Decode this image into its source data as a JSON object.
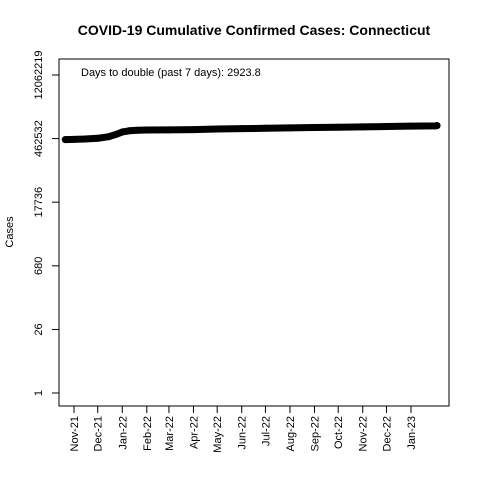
{
  "chart_data": {
    "type": "line",
    "title": "COVID-19 Cumulative Confirmed Cases: Connecticut",
    "ylabel": "Cases",
    "xlabel": "",
    "y_scale": "log",
    "y_ticks": [
      1,
      26,
      680,
      17736,
      462532,
      12062219
    ],
    "y_tick_labels": [
      "1",
      "26",
      "680",
      "17736",
      "462532",
      "12062219"
    ],
    "x_ticks": [
      "2021-11-01",
      "2021-12-01",
      "2022-01-01",
      "2022-02-01",
      "2022-03-01",
      "2022-04-01",
      "2022-05-01",
      "2022-06-01",
      "2022-07-01",
      "2022-08-01",
      "2022-09-01",
      "2022-10-01",
      "2022-11-01",
      "2022-12-01",
      "2023-01-01"
    ],
    "x_tick_labels": [
      "Nov-21",
      "Dec-21",
      "Jan-22",
      "Feb-22",
      "Mar-22",
      "Apr-22",
      "May-22",
      "Jun-22",
      "Jul-22",
      "Aug-22",
      "Sep-22",
      "Oct-22",
      "Nov-22",
      "Dec-22",
      "Jan-23"
    ],
    "x_range": [
      "2021-10-15",
      "2023-03-15"
    ],
    "annotation": "Days to double (past 7 days): 2923.8",
    "grid": false,
    "legend": "none",
    "series": [
      {
        "color": "#000000",
        "x": [
          "2021-10-21",
          "2021-11-01",
          "2021-11-15",
          "2021-12-01",
          "2021-12-15",
          "2021-12-25",
          "2022-01-01",
          "2022-01-10",
          "2022-01-20",
          "2022-02-01",
          "2022-03-01",
          "2022-04-01",
          "2022-05-01",
          "2022-06-01",
          "2022-07-01",
          "2022-08-01",
          "2022-09-01",
          "2022-10-01",
          "2022-11-01",
          "2022-12-01",
          "2023-01-01",
          "2023-02-01",
          "2023-03-01"
        ],
        "y": [
          440000,
          445000,
          452000,
          470000,
          510000,
          580000,
          650000,
          690000,
          710000,
          720000,
          725000,
          735000,
          755000,
          770000,
          785000,
          800000,
          815000,
          830000,
          845000,
          860000,
          875000,
          890000,
          900000
        ]
      }
    ]
  }
}
